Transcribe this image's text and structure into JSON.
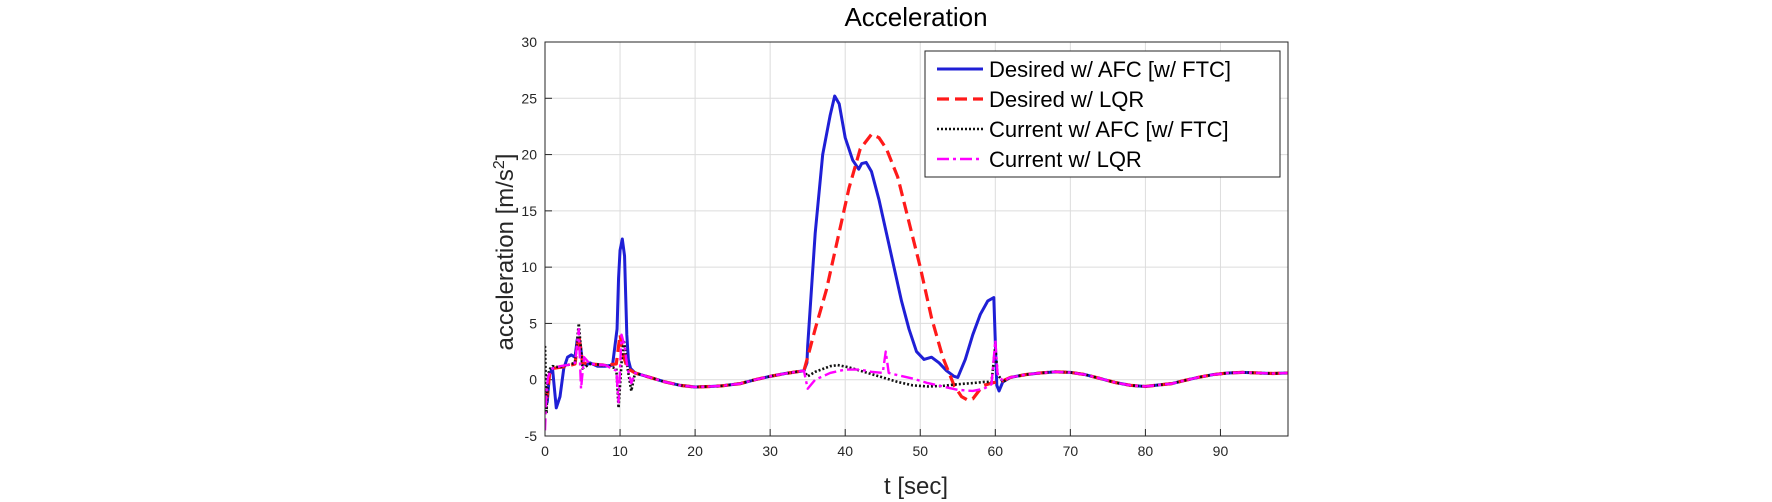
{
  "chart_data": {
    "type": "line",
    "title": "Acceleration",
    "xlabel": "t [sec]",
    "ylabel_main": "acceleration [m/s",
    "ylabel_sup": "2",
    "ylabel_end": "]",
    "xlim": [
      0,
      99
    ],
    "ylim": [
      -5,
      30
    ],
    "xticks": [
      0,
      10,
      20,
      30,
      40,
      50,
      60,
      70,
      80,
      90
    ],
    "yticks": [
      -5,
      0,
      5,
      10,
      15,
      20,
      25,
      30
    ],
    "grid": true,
    "legend_position": "top-right",
    "series": [
      {
        "name": "Desired w/ AFC [w/ FTC]",
        "color": "#1f1fd6",
        "style": "solid",
        "x": [
          0,
          0.3,
          0.6,
          1.0,
          1.5,
          2.0,
          2.5,
          3.0,
          3.5,
          4.0,
          4.3,
          4.7,
          5.0,
          5.5,
          6.0,
          7.0,
          8.0,
          9.0,
          9.6,
          9.8,
          10.0,
          10.3,
          10.6,
          10.9,
          11.1,
          11.4,
          11.7,
          12.0,
          14,
          16,
          18,
          20,
          22,
          23.5,
          26,
          28,
          30,
          32,
          34.5,
          34.9,
          35.0,
          36.0,
          37.0,
          38.0,
          38.6,
          39.2,
          40.0,
          41.0,
          41.8,
          42.2,
          42.8,
          43.5,
          44.5,
          45.5,
          46.5,
          47.5,
          48.5,
          49.5,
          50.5,
          51.5,
          52.5,
          53.5,
          54.5,
          55.0,
          56.0,
          57.0,
          58.0,
          59.0,
          59.8,
          60.2,
          60.5,
          61.0,
          62,
          64,
          66,
          68,
          70,
          72,
          74,
          76,
          78,
          80,
          82,
          83.5,
          85,
          87,
          89,
          91,
          93,
          95,
          97,
          99
        ],
        "y": [
          -1.0,
          -2.0,
          0.5,
          1.0,
          -2.5,
          -1.5,
          1.0,
          2.0,
          2.2,
          2.0,
          3.6,
          3.2,
          1.5,
          1.3,
          1.5,
          1.2,
          1.2,
          1.3,
          4.5,
          9.0,
          11.5,
          12.5,
          11.0,
          4.0,
          1.8,
          1.0,
          0.8,
          0.6,
          0.2,
          -0.2,
          -0.5,
          -0.65,
          -0.6,
          -0.55,
          -0.35,
          0.0,
          0.3,
          0.55,
          0.8,
          1.5,
          3.0,
          13.0,
          20.0,
          23.5,
          25.2,
          24.5,
          21.5,
          19.5,
          18.7,
          19.2,
          19.3,
          18.5,
          16.0,
          13.0,
          10.0,
          7.0,
          4.5,
          2.5,
          1.8,
          2.0,
          1.5,
          0.8,
          0.3,
          0.2,
          1.8,
          4.0,
          5.8,
          7.0,
          7.3,
          -0.5,
          -1.0,
          -0.2,
          0.2,
          0.45,
          0.6,
          0.7,
          0.65,
          0.45,
          0.1,
          -0.25,
          -0.5,
          -0.6,
          -0.45,
          -0.35,
          -0.1,
          0.2,
          0.45,
          0.6,
          0.65,
          0.6,
          0.55,
          0.6
        ]
      },
      {
        "name": "Desired w/ LQR",
        "color": "#ff1a1a",
        "style": "dashed",
        "x": [
          0,
          0.3,
          0.6,
          1.0,
          2.0,
          3.0,
          4.0,
          4.5,
          5.0,
          6.0,
          8.0,
          9.5,
          10.0,
          10.5,
          11.0,
          12.0,
          14,
          16,
          18,
          20,
          22,
          23.5,
          26,
          28,
          30,
          32,
          34.5,
          35.0,
          36.0,
          37.5,
          39.0,
          40.5,
          42.0,
          43.5,
          44.5,
          45.5,
          47.0,
          48.5,
          50.0,
          51.5,
          53.0,
          54.5,
          55.5,
          56.3,
          57.0,
          57.8,
          58.5,
          59.5,
          60.2,
          61.0,
          62,
          64,
          66,
          68,
          70,
          72,
          74,
          76,
          78,
          80,
          82,
          83.5,
          85,
          87,
          89,
          91,
          93,
          95,
          97,
          99
        ],
        "y": [
          -1.0,
          -1.5,
          0.5,
          1.0,
          1.1,
          1.2,
          1.4,
          4.0,
          1.5,
          1.4,
          1.3,
          1.4,
          4.0,
          2.0,
          1.0,
          0.6,
          0.2,
          -0.2,
          -0.5,
          -0.65,
          -0.6,
          -0.55,
          -0.35,
          0.0,
          0.3,
          0.55,
          0.8,
          2.0,
          4.5,
          8.0,
          12.5,
          17.0,
          20.5,
          21.8,
          21.5,
          20.5,
          18.0,
          14.0,
          10.0,
          5.5,
          2.0,
          -0.5,
          -1.5,
          -1.8,
          -1.7,
          -1.0,
          -0.5,
          -0.3,
          -0.2,
          -0.1,
          0.2,
          0.45,
          0.6,
          0.7,
          0.65,
          0.45,
          0.1,
          -0.25,
          -0.5,
          -0.6,
          -0.45,
          -0.35,
          -0.1,
          0.2,
          0.45,
          0.6,
          0.65,
          0.6,
          0.55,
          0.6
        ]
      },
      {
        "name": "Current w/ AFC [w/ FTC]",
        "color": "#111111",
        "style": "dotted",
        "x": [
          0,
          0.2,
          0.4,
          0.7,
          1.0,
          2.0,
          3.0,
          4.0,
          4.5,
          5.0,
          6.0,
          8.0,
          9.5,
          9.8,
          10.2,
          10.5,
          11.0,
          11.5,
          12.0,
          14,
          16,
          18,
          20,
          22,
          23.5,
          26,
          28,
          30,
          32,
          34.5,
          35.0,
          36.0,
          38.0,
          39.0,
          40.5,
          42.0,
          43.5,
          45.0,
          47.0,
          49.0,
          51.0,
          53.0,
          55.0,
          57.0,
          58.5,
          59.5,
          60.0,
          60.3,
          61.0,
          62,
          64,
          66,
          68,
          70,
          72,
          74,
          76,
          78,
          80,
          82,
          83.5,
          85,
          87,
          89,
          91,
          93,
          95,
          97,
          99
        ],
        "y": [
          3.0,
          -3.0,
          0.5,
          1.0,
          1.2,
          1.1,
          1.3,
          1.5,
          5.0,
          1.0,
          1.4,
          1.3,
          1.0,
          -2.5,
          1.5,
          3.5,
          1.0,
          -1.0,
          0.6,
          0.2,
          -0.2,
          -0.5,
          -0.65,
          -0.6,
          -0.55,
          -0.35,
          0.0,
          0.3,
          0.55,
          0.8,
          0.3,
          0.7,
          1.2,
          1.3,
          1.1,
          0.8,
          0.5,
          0.2,
          -0.2,
          -0.5,
          -0.6,
          -0.55,
          -0.4,
          -0.3,
          -0.2,
          -0.2,
          3.0,
          0.5,
          -0.2,
          0.2,
          0.45,
          0.6,
          0.7,
          0.65,
          0.45,
          0.1,
          -0.25,
          -0.5,
          -0.6,
          -0.45,
          -0.35,
          -0.1,
          0.2,
          0.45,
          0.6,
          0.65,
          0.6,
          0.55,
          0.6
        ]
      },
      {
        "name": "Current w/ LQR",
        "color": "#ff00ff",
        "style": "dashdot",
        "x": [
          0,
          0.2,
          0.4,
          0.7,
          1.0,
          2.0,
          3.0,
          4.0,
          4.5,
          4.8,
          5.2,
          6.0,
          8.0,
          9.5,
          9.8,
          10.2,
          10.6,
          11.0,
          11.5,
          12.0,
          14,
          16,
          18,
          20,
          22,
          23.5,
          26,
          28,
          30,
          32,
          34.5,
          35.0,
          36.0,
          38.0,
          40.0,
          42.0,
          43.5,
          45.0,
          45.4,
          45.8,
          47.0,
          49.0,
          51.0,
          53.0,
          55.0,
          57.0,
          58.5,
          59.5,
          60.0,
          60.3,
          61.0,
          62,
          64,
          66,
          68,
          70,
          72,
          74,
          76,
          78,
          80,
          82,
          83.5,
          85,
          87,
          89,
          91,
          93,
          95,
          97,
          99
        ],
        "y": [
          -4.5,
          -1.0,
          0.2,
          0.8,
          1.0,
          1.2,
          1.3,
          1.5,
          4.5,
          -0.8,
          2.0,
          1.4,
          1.3,
          0.8,
          -2.0,
          4.0,
          3.0,
          1.0,
          -0.3,
          0.6,
          0.2,
          -0.2,
          -0.5,
          -0.65,
          -0.6,
          -0.55,
          -0.35,
          0.0,
          0.3,
          0.55,
          0.8,
          -0.8,
          0.0,
          0.6,
          0.9,
          0.9,
          0.7,
          0.6,
          2.5,
          0.6,
          0.4,
          0.1,
          -0.3,
          -0.6,
          -0.9,
          -1.0,
          -0.8,
          -0.4,
          3.5,
          0.5,
          -0.1,
          0.2,
          0.45,
          0.6,
          0.7,
          0.65,
          0.45,
          0.1,
          -0.25,
          -0.5,
          -0.6,
          -0.45,
          -0.35,
          -0.1,
          0.2,
          0.45,
          0.6,
          0.65,
          0.6,
          0.55,
          0.6
        ]
      }
    ]
  }
}
